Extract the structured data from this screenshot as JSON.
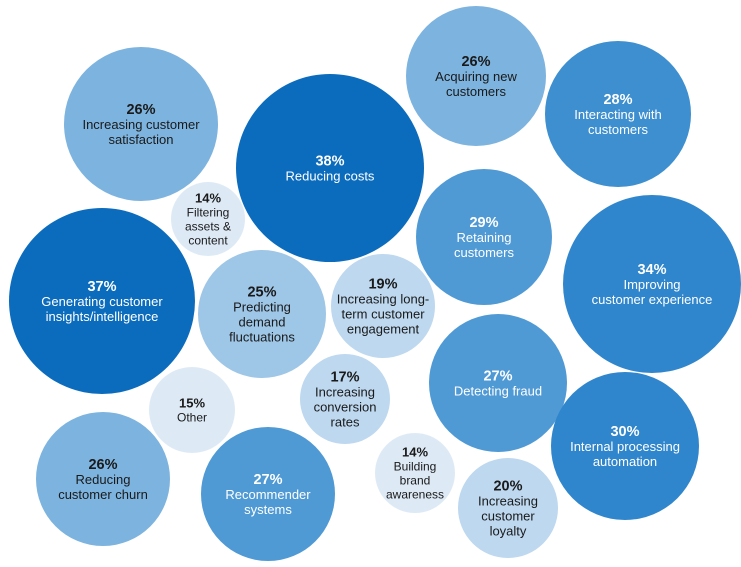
{
  "chart_data": {
    "type": "bubble",
    "title": "",
    "items": [
      {
        "label": "Increasing customer satisfaction",
        "value": 26,
        "lines": [
          "Increasing customer",
          "satisfaction"
        ],
        "color": "#7db3df",
        "text_color": "#1a1a1a"
      },
      {
        "label": "Reducing costs",
        "value": 38,
        "lines": [
          "Reducing costs"
        ],
        "color": "#0b6cbd",
        "text_color": "#ffffff"
      },
      {
        "label": "Acquiring new customers",
        "value": 26,
        "lines": [
          "Acquiring new",
          "customers"
        ],
        "color": "#7db3df",
        "text_color": "#1a1a1a"
      },
      {
        "label": "Interacting with customers",
        "value": 28,
        "lines": [
          "Interacting with",
          "customers"
        ],
        "color": "#3d8fd0",
        "text_color": "#ffffff"
      },
      {
        "label": "Filtering assets & content",
        "value": 14,
        "lines": [
          "Filtering",
          "assets &",
          "content"
        ],
        "color": "#ddeaf6",
        "text_color": "#1a1a1a"
      },
      {
        "label": "Retaining customers",
        "value": 29,
        "lines": [
          "Retaining",
          "customers"
        ],
        "color": "#4f9ad5",
        "text_color": "#ffffff"
      },
      {
        "label": "Improving customer experience",
        "value": 34,
        "lines": [
          "Improving",
          "customer experience"
        ],
        "color": "#2f86cc",
        "text_color": "#ffffff"
      },
      {
        "label": "Generating customer insights/intelligence",
        "value": 37,
        "lines": [
          "Generating customer",
          "insights/intelligence"
        ],
        "color": "#0b6cbd",
        "text_color": "#ffffff"
      },
      {
        "label": "Predicting demand fluctuations",
        "value": 25,
        "lines": [
          "Predicting",
          "demand",
          "fluctuations"
        ],
        "color": "#9dc6e7",
        "text_color": "#1a1a1a"
      },
      {
        "label": "Increasing long-term customer engagement",
        "value": 19,
        "lines": [
          "Increasing long-",
          "term customer",
          "engagement"
        ],
        "color": "#bdd8ef",
        "text_color": "#1a1a1a"
      },
      {
        "label": "Detecting fraud",
        "value": 27,
        "lines": [
          "Detecting fraud"
        ],
        "color": "#4f9ad5",
        "text_color": "#ffffff"
      },
      {
        "label": "Other",
        "value": 15,
        "lines": [
          "Other"
        ],
        "color": "#ddeaf6",
        "text_color": "#1a1a1a"
      },
      {
        "label": "Increasing conversion rates",
        "value": 17,
        "lines": [
          "Increasing",
          "conversion",
          "rates"
        ],
        "color": "#bdd8ef",
        "text_color": "#1a1a1a"
      },
      {
        "label": "Internal processing automation",
        "value": 30,
        "lines": [
          "Internal processing",
          "automation"
        ],
        "color": "#2f86cc",
        "text_color": "#ffffff"
      },
      {
        "label": "Reducing customer churn",
        "value": 26,
        "lines": [
          "Reducing",
          "customer churn"
        ],
        "color": "#7db3df",
        "text_color": "#1a1a1a"
      },
      {
        "label": "Building brand awareness",
        "value": 14,
        "lines": [
          "Building",
          "brand",
          "awareness"
        ],
        "color": "#ddeaf6",
        "text_color": "#1a1a1a"
      },
      {
        "label": "Recommender systems",
        "value": 27,
        "lines": [
          "Recommender",
          "systems"
        ],
        "color": "#4f9ad5",
        "text_color": "#ffffff"
      },
      {
        "label": "Increasing customer loyalty",
        "value": 20,
        "lines": [
          "Increasing",
          "customer",
          "loyalty"
        ],
        "color": "#bdd8ef",
        "text_color": "#1a1a1a"
      }
    ]
  }
}
